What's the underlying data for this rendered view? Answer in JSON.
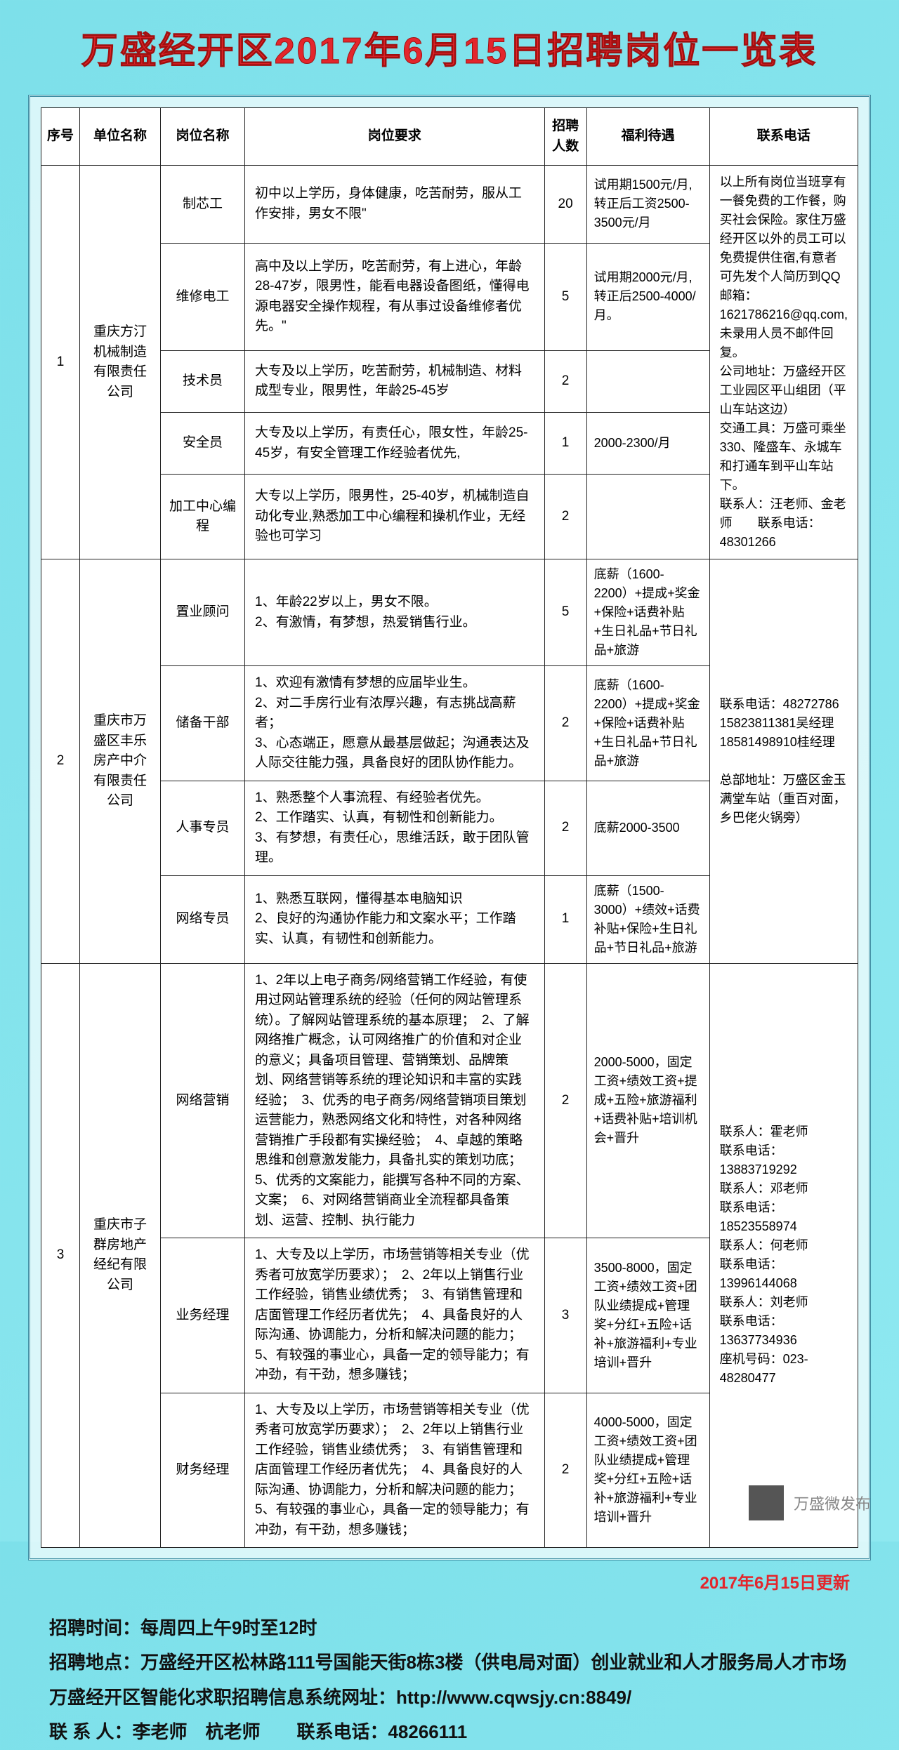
{
  "title": "万盛经开区2017年6月15日招聘岗位一览表",
  "columns": [
    "序号",
    "单位名称",
    "岗位名称",
    "岗位要求",
    "招聘人数",
    "福利待遇",
    "联系电话"
  ],
  "table": [
    {
      "seq": "1",
      "company": "重庆方汀机械制造有限责任公司",
      "contact": "以上所有岗位当班享有一餐免费的工作餐，购买社会保险。家住万盛经开区以外的员工可以免费提供住宿,有意者可先发个人简历到QQ邮箱：1621786216@qq.com,未录用人员不邮件回复。\n公司地址：万盛经开区工业园区平山组团（平山车站这边）\n交通工具：万盛可乘坐330、隆盛车、永城车和打通车到平山车站下。\n联系人：汪老师、金老师　　联系电话：48301266",
      "jobs": [
        {
          "name": "制芯工",
          "req": "初中以上学历，身体健康，吃苦耐劳，服从工作安排，男女不限\"",
          "count": "20",
          "benefit": "试用期1500元/月,转正后工资2500-3500元/月"
        },
        {
          "name": "维修电工",
          "req": "高中及以上学历，吃苦耐劳，有上进心，年龄28-47岁，限男性，能看电器设备图纸，懂得电源电器安全操作规程，有从事过设备维修者优先。\"",
          "count": "5",
          "benefit": "试用期2000元/月,转正后2500-4000/月。"
        },
        {
          "name": "技术员",
          "req": "大专及以上学历，吃苦耐劳，机械制造、材料成型专业，限男性，年龄25-45岁",
          "count": "2",
          "benefit": ""
        },
        {
          "name": "安全员",
          "req": "大专及以上学历，有责任心，限女性，年龄25-45岁，有安全管理工作经验者优先,",
          "count": "1",
          "benefit": "2000-2300/月"
        },
        {
          "name": "加工中心编程",
          "req": "大专以上学历，限男性，25-40岁，机械制造自动化专业,熟悉加工中心编程和操机作业，无经验也可学习",
          "count": "2",
          "benefit": ""
        }
      ]
    },
    {
      "seq": "2",
      "company": "重庆市万盛区丰乐房产中介有限责任公司",
      "contact": "联系电话：48272786\n15823811381吴经理\n18581498910桂经理\n\n总部地址：万盛区金玉满堂车站（重百对面，乡巴佬火锅旁）",
      "jobs": [
        {
          "name": "置业顾问",
          "req": "1、年龄22岁以上，男女不限。\n2、有激情，有梦想，热爱销售行业。",
          "count": "5",
          "benefit": "底薪（1600-2200）+提成+奖金+保险+话费补贴+生日礼品+节日礼品+旅游"
        },
        {
          "name": "储备干部",
          "req": "1、欢迎有激情有梦想的应届毕业生。\n2、对二手房行业有浓厚兴趣，有志挑战高薪者；\n3、心态端正，愿意从最基层做起；沟通表达及人际交往能力强，具备良好的团队协作能力。",
          "count": "2",
          "benefit": "底薪（1600-2200）+提成+奖金+保险+话费补贴+生日礼品+节日礼品+旅游"
        },
        {
          "name": "人事专员",
          "req": "1、熟悉整个人事流程、有经验者优先。\n2、工作踏实、认真，有韧性和创新能力。\n3、有梦想，有责任心，思维活跃，敢于团队管理。",
          "count": "2",
          "benefit": "底薪2000-3500"
        },
        {
          "name": "网络专员",
          "req": "1、熟悉互联网，懂得基本电脑知识\n2、良好的沟通协作能力和文案水平；工作踏实、认真，有韧性和创新能力。",
          "count": "1",
          "benefit": "底薪（1500-3000）+绩效+话费补贴+保险+生日礼品+节日礼品+旅游"
        }
      ]
    },
    {
      "seq": "3",
      "company": "重庆市子群房地产经纪有限公司",
      "contact": "联系人：霍老师\n联系电话：13883719292\n联系人：邓老师\n联系电话：18523558974\n联系人：何老师\n联系电话：13996144068\n联系人：刘老师\n联系电话：13637734936\n座机号码：023-48280477",
      "jobs": [
        {
          "name": "网络营销",
          "req": "1、2年以上电子商务/网络营销工作经验，有使用过网站管理系统的经验（任何的网站管理系统）。了解网站管理系统的基本原理；　2、了解网络推广概念，认可网络推广的价值和对企业的意义；具备项目管理、营销策划、品牌策划、网络营销等系统的理论知识和丰富的实践经验；　3、优秀的电子商务/网络营销项目策划运营能力，熟悉网络文化和特性，对各种网络营销推广手段都有实操经验；　4、卓越的策略思维和创意激发能力，具备扎实的策划功底；5、优秀的文案能力，能撰写各种不同的方案、文案；　6、对网络营销商业全流程都具备策划、运营、控制、执行能力",
          "count": "2",
          "benefit": "2000-5000，固定工资+绩效工资+提成+五险+旅游福利+话费补贴+培训机会+晋升"
        },
        {
          "name": "业务经理",
          "req": "1、大专及以上学历，市场营销等相关专业（优秀者可放宽学历要求）；　2、2年以上销售行业工作经验，销售业绩优秀；　3、有销售管理和店面管理工作经历者优先；　4、具备良好的人际沟通、协调能力，分析和解决问题的能力；5、有较强的事业心，具备一定的领导能力；有冲劲，有干劲，想多赚钱；",
          "count": "3",
          "benefit": "3500-8000，固定工资+绩效工资+团队业绩提成+管理奖+分红+五险+话补+旅游福利+专业培训+晋升"
        },
        {
          "name": "财务经理",
          "req": "1、大专及以上学历，市场营销等相关专业（优秀者可放宽学历要求）；　2、2年以上销售行业工作经验，销售业绩优秀；　3、有销售管理和店面管理工作经历者优先；　4、具备良好的人际沟通、协调能力，分析和解决问题的能力；　5、有较强的事业心，具备一定的领导能力；有冲劲，有干劲，想多赚钱；",
          "count": "2",
          "benefit": "4000-5000，固定工资+绩效工资+团队业绩提成+管理奖+分红+五险+话补+旅游福利+专业培训+晋升"
        }
      ]
    }
  ],
  "update": "2017年6月15日更新",
  "footer": {
    "l1": "招聘时间：每周四上午9时至12时",
    "l2": "招聘地点：万盛经开区松林路111号国能天街8栋3楼（供电局对面）创业就业和人才服务局人才市场",
    "l3": "万盛经开区智能化求职招聘信息系统网址：http://www.cqwsjy.cn:8849/",
    "l4": "联 系 人：李老师　杭老师　　联系电话：48266111"
  },
  "wm": "万盛微发布"
}
